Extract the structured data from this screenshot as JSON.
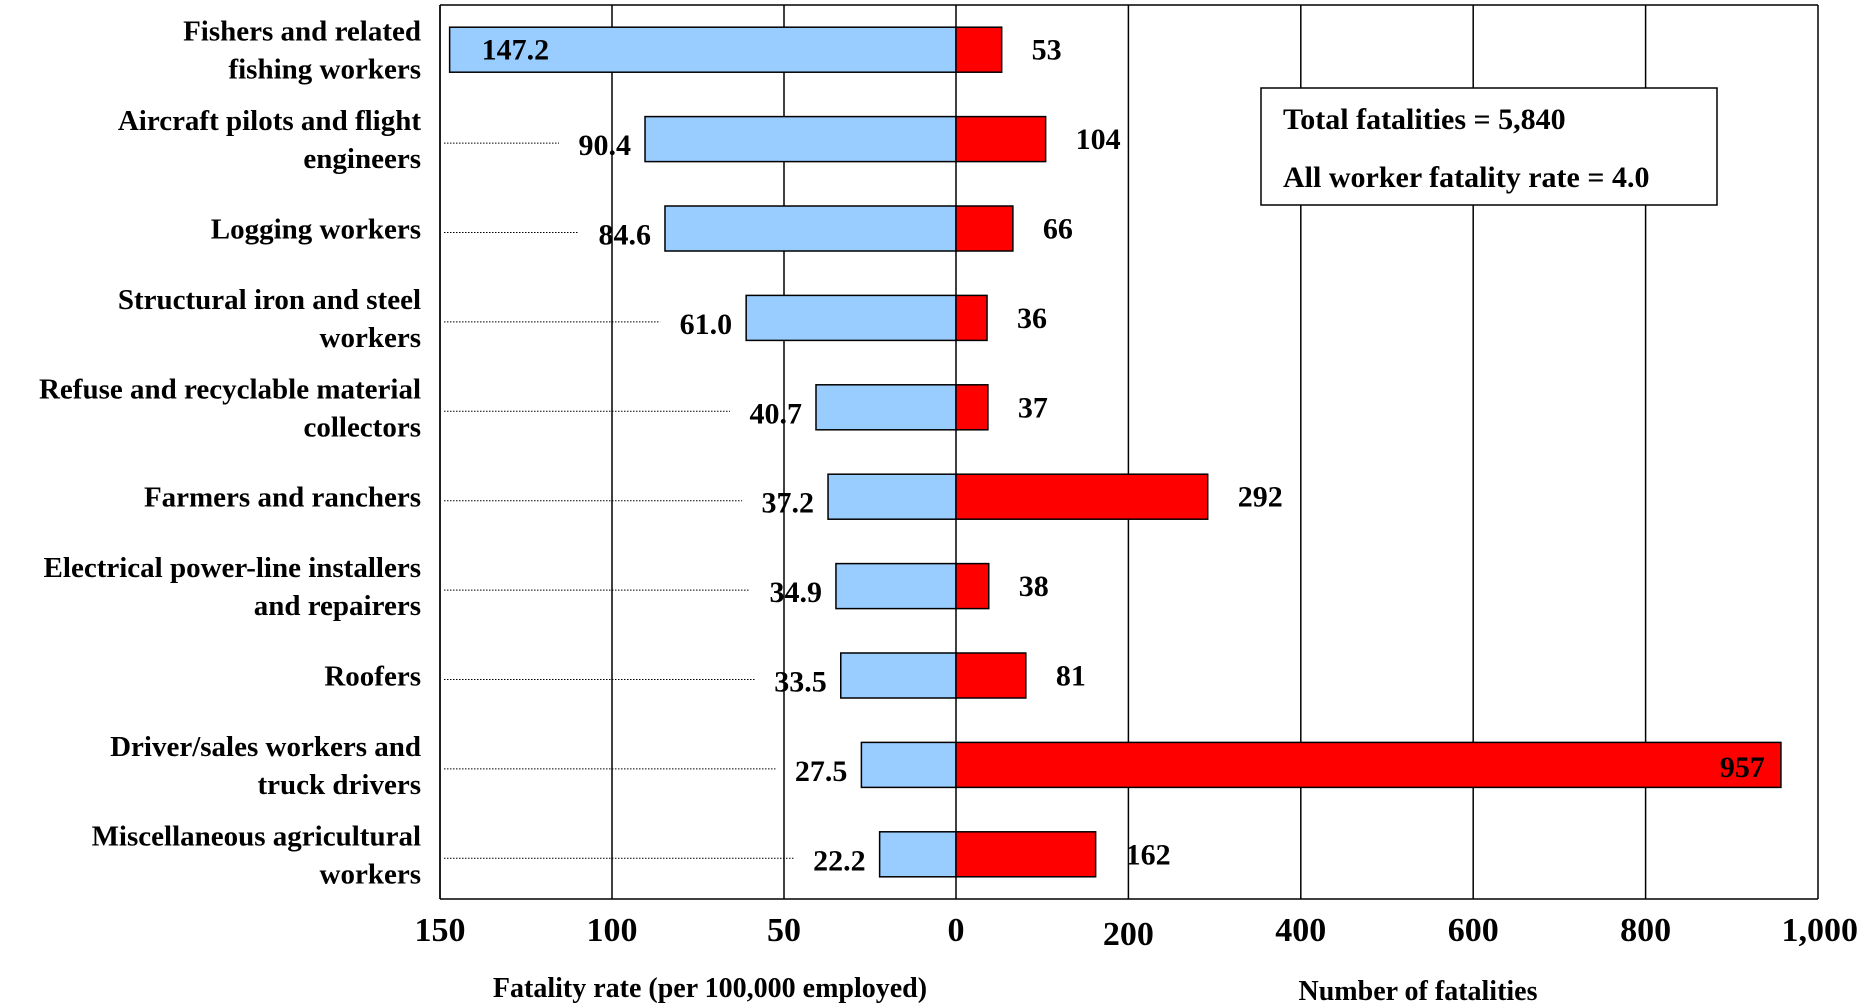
{
  "chart_data": {
    "type": "bar",
    "layout": "diverging-horizontal",
    "categories": [
      [
        "Fishers and related",
        "fishing workers"
      ],
      [
        "Aircraft pilots and flight",
        "engineers"
      ],
      [
        "Logging workers"
      ],
      [
        "Structural iron and steel",
        "workers"
      ],
      [
        "Refuse and recyclable material",
        "collectors"
      ],
      [
        "Farmers and ranchers"
      ],
      [
        "Electrical power-line installers",
        "and repairers"
      ],
      [
        "Roofers"
      ],
      [
        "Driver/sales workers and",
        "truck drivers"
      ],
      [
        "Miscellaneous agricultural",
        "workers"
      ]
    ],
    "series": [
      {
        "name": "Fatality rate",
        "color": "#99ccff",
        "side": "left",
        "values": [
          147.2,
          90.4,
          84.6,
          61.0,
          40.7,
          37.2,
          34.9,
          33.5,
          27.5,
          22.2
        ],
        "labels": [
          "147.2",
          "90.4",
          "84.6",
          "61.0",
          "40.7",
          "37.2",
          "34.9",
          "33.5",
          "27.5",
          "22.2"
        ]
      },
      {
        "name": "Number of fatalities",
        "color": "#ff0000",
        "side": "right",
        "values": [
          53,
          104,
          66,
          36,
          37,
          292,
          38,
          81,
          957,
          162
        ],
        "labels": [
          "53",
          "104",
          "66",
          "36",
          "37",
          "292",
          "38",
          "81",
          "957",
          "162"
        ]
      }
    ],
    "left_axis": {
      "label": "Fatality rate (per 100,000 employed)",
      "range": [
        0,
        150
      ],
      "ticks": [
        150,
        100,
        50,
        0
      ],
      "tick_labels": [
        "150",
        "100",
        "50",
        "0"
      ]
    },
    "right_axis": {
      "label": "Number of fatalities",
      "range": [
        0,
        1000
      ],
      "ticks": [
        200,
        400,
        600,
        800,
        1000
      ],
      "tick_labels": [
        "200",
        "400",
        "600",
        "800",
        "1,000"
      ]
    },
    "annotation": {
      "lines": [
        "Total fatalities = 5,840",
        "All worker fatality rate = 4.0"
      ],
      "placement": "top-right"
    },
    "grid": true
  }
}
